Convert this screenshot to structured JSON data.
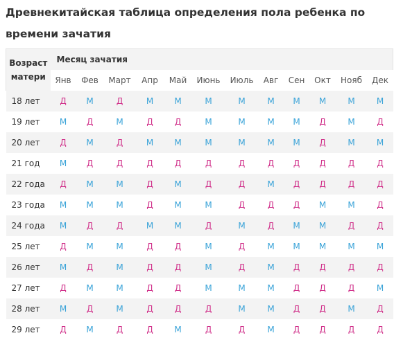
{
  "title": "Древнекитайская таблица определения пола ребенка по времени зачатия",
  "table": {
    "age_header": "Возраст матери",
    "month_header": "Месяц зачатия",
    "months": [
      "Янв",
      "Фев",
      "Март",
      "Апр",
      "Май",
      "Июнь",
      "Июль",
      "Авг",
      "Сен",
      "Окт",
      "Нояб",
      "Дек"
    ],
    "rows": [
      {
        "age": "18 лет",
        "cells": [
          "Д",
          "М",
          "Д",
          "М",
          "М",
          "М",
          "М",
          "М",
          "М",
          "М",
          "М",
          "М"
        ]
      },
      {
        "age": "19 лет",
        "cells": [
          "М",
          "Д",
          "М",
          "Д",
          "Д",
          "М",
          "М",
          "М",
          "М",
          "Д",
          "М",
          "Д"
        ]
      },
      {
        "age": "20 лет",
        "cells": [
          "Д",
          "М",
          "Д",
          "М",
          "М",
          "М",
          "М",
          "М",
          "М",
          "Д",
          "М",
          "М"
        ]
      },
      {
        "age": "21 год",
        "cells": [
          "М",
          "Д",
          "Д",
          "Д",
          "Д",
          "Д",
          "Д",
          "Д",
          "Д",
          "Д",
          "Д",
          "Д"
        ]
      },
      {
        "age": "22 года",
        "cells": [
          "Д",
          "М",
          "М",
          "Д",
          "М",
          "Д",
          "Д",
          "М",
          "Д",
          "Д",
          "Д",
          "Д"
        ]
      },
      {
        "age": "23 года",
        "cells": [
          "М",
          "М",
          "М",
          "Д",
          "М",
          "М",
          "Д",
          "Д",
          "Д",
          "М",
          "М",
          "Д"
        ]
      },
      {
        "age": "24 года",
        "cells": [
          "М",
          "Д",
          "Д",
          "М",
          "М",
          "Д",
          "М",
          "Д",
          "М",
          "М",
          "Д",
          "Д"
        ]
      },
      {
        "age": "25 лет",
        "cells": [
          "Д",
          "М",
          "М",
          "Д",
          "Д",
          "М",
          "Д",
          "М",
          "М",
          "М",
          "М",
          "М"
        ]
      },
      {
        "age": "26 лет",
        "cells": [
          "М",
          "Д",
          "М",
          "Д",
          "Д",
          "М",
          "Д",
          "М",
          "Д",
          "Д",
          "Д",
          "Д"
        ]
      },
      {
        "age": "27 лет",
        "cells": [
          "Д",
          "М",
          "М",
          "Д",
          "Д",
          "М",
          "М",
          "М",
          "Д",
          "Д",
          "Д",
          "М"
        ]
      },
      {
        "age": "28 лет",
        "cells": [
          "М",
          "Д",
          "М",
          "Д",
          "Д",
          "Д",
          "М",
          "М",
          "Д",
          "Д",
          "М",
          "Д"
        ]
      },
      {
        "age": "29 лет",
        "cells": [
          "Д",
          "М",
          "Д",
          "Д",
          "М",
          "Д",
          "Д",
          "М",
          "Д",
          "Д",
          "Д",
          "Д"
        ]
      }
    ]
  },
  "colors": {
    "girl": "#d0308a",
    "boy": "#3aa3d8",
    "stripe": "#f3f3f3"
  }
}
